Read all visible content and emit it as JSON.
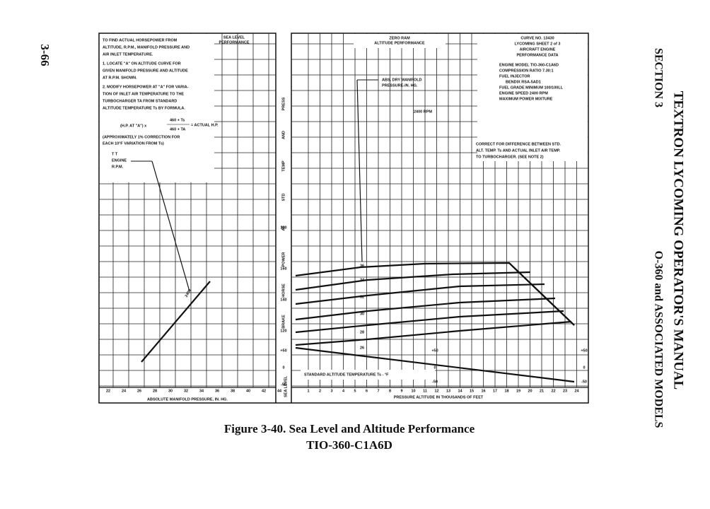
{
  "header": {
    "page_number": "3-66",
    "manual_title": "TEXTRON LYCOMING OPERATOR'S MANUAL",
    "section": "SECTION 3",
    "models": "O-360 and ASSOCIATED MODELS"
  },
  "left_panel": {
    "heading": [
      "SEA LEVEL",
      "PERFORMANCE"
    ],
    "instructions": [
      "TO FIND ACTUAL HORSEPOWER FROM",
      "ALTITUDE, R.P.M., MANIFOLD PRESSURE AND",
      "AIR INLET TEMPERATURE.",
      "1. LOCATE \"A\" ON ALTITUDE CURVE FOR",
      "GIVEN MANIFOLD PRESSURE AND ALTITUDE",
      "AT R.P.M. SHOWN.",
      "2. MODIFY HORSEPOWER AT \"A\" FOR VARIA-",
      "TION OF INLET AIR TEMPERATURE TO THE",
      "TURBOCHARGER TA FROM STANDARD",
      "ALTITUDE TEMPERATURE Ts BY FORMULA."
    ],
    "formula_left": "(H.P. AT \"A\") x",
    "formula_num": "460 + Ts",
    "formula_den": "460 + TA",
    "formula_right": "= ACTUAL H.P.",
    "note": [
      "(APPROXIMATELY 1% CORRECTION FOR",
      "EACH 10°F VARIATION FROM Ts)"
    ],
    "legend": [
      "T  T",
      "ENGINE",
      "R.P.M."
    ],
    "line_label": "2400",
    "x_ticks": [
      "22",
      "24",
      "26",
      "28",
      "30",
      "32",
      "34",
      "36",
      "38",
      "40",
      "42",
      "44"
    ],
    "x_label": "ABSOLUTE MANIFOLD PRESSURE, IN. HG."
  },
  "middle": {
    "y_ticks": [
      "180",
      "160",
      "140",
      "120",
      "+50",
      "0",
      "-50"
    ],
    "y_label": [
      "BRAKE",
      "HORSE",
      "POWER",
      "AT",
      "STD",
      "TEMP",
      "AND",
      "PRESS"
    ],
    "sea_level": "SEA LEVEL"
  },
  "right_panel": {
    "heading": [
      "ZERO RAM",
      "ALTITUDE PERFORMANCE"
    ],
    "data_block": [
      "CURVE NO. 13430",
      "LYCOMING SHEET 2 of 3",
      "AIRCRAFT ENGINE",
      "PERFORMANCE DATA",
      "ENGINE MODEL   TIO-360-C1A6D",
      "COMPRESSION RATIO   7.30:1",
      "FUEL INJECTOR",
      "BENDIX RSA-5AD1",
      "FUEL GRADE MINIMUM 100/100LL",
      "ENGINE SPEED   2400 RPM",
      "MAXIMUM POWER MIXTURE"
    ],
    "manifold_label": [
      "ABS. DRY MANIFOLD",
      "PRESSURE-IN. HG."
    ],
    "rpm_label": "2400 RPM",
    "correction": [
      "CORRECT FOR DIFFERENCE BETWEEN STD.",
      "ALT. TEMP. Ts AND ACTUAL INLET AIR TEMP.",
      "TO TURBOCHARGER. (SEE NOTE 2)"
    ],
    "curve_labels": [
      "36",
      "34",
      "32",
      "30",
      "28",
      "26"
    ],
    "temp_ticks_inner": [
      "+50",
      "0",
      "-50"
    ],
    "temp_ticks_right": [
      "+50",
      "0",
      "-50"
    ],
    "temp_label": "STANDARD ALTITUDE TEMPERATURE Ts - °F",
    "x_ticks": [
      "1",
      "2",
      "3",
      "4",
      "5",
      "6",
      "7",
      "8",
      "9",
      "10",
      "11",
      "12",
      "13",
      "14",
      "15",
      "16",
      "17",
      "18",
      "19",
      "20",
      "21",
      "22",
      "23",
      "24"
    ],
    "x_label": "PRESSURE ALTITUDE IN THOUSANDS OF FEET"
  },
  "caption": {
    "line1": "Figure 3-40. Sea Level and Altitude Performance",
    "line2": "TIO-360-C1A6D"
  }
}
